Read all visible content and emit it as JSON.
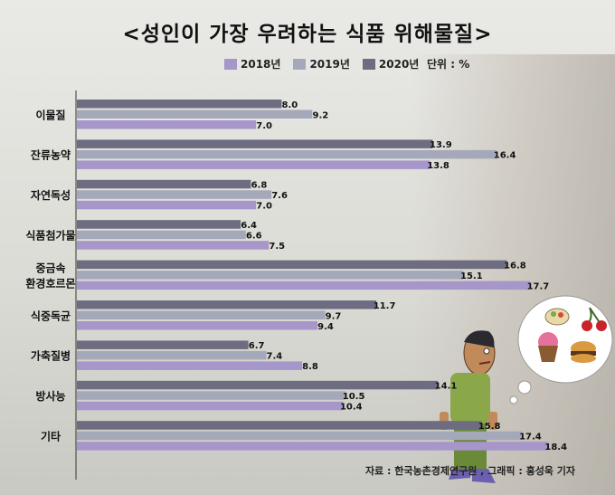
{
  "title": "<성인이 가장 우려하는 식품 위해물질>",
  "unit_label": "단위 : %",
  "source": "자료 : 한국농촌경제연구원 , 그래픽 : 홍성욱 기자",
  "chart_data": {
    "type": "bar",
    "orientation": "horizontal",
    "title": "<성인이 가장 우려하는 식품 위해물질>",
    "unit": "%",
    "legend_position": "top",
    "categories": [
      "이물질",
      "잔류농약",
      "자연독성",
      "식품첨가물",
      "중금속\n환경호르몬",
      "식중독균",
      "가축질병",
      "방사능",
      "기타"
    ],
    "category_lines": [
      [
        "이물질"
      ],
      [
        "잔류농약"
      ],
      [
        "자연독성"
      ],
      [
        "식품첨가물"
      ],
      [
        "중금속",
        "환경호르몬"
      ],
      [
        "식중독균"
      ],
      [
        "가축질병"
      ],
      [
        "방사능"
      ],
      [
        "기타"
      ]
    ],
    "series": [
      {
        "name": "2020년",
        "color": "#6d6c81",
        "values": [
          8.0,
          13.9,
          6.8,
          6.4,
          16.8,
          11.7,
          6.7,
          14.1,
          15.8
        ]
      },
      {
        "name": "2019년",
        "color": "#a5a8b9",
        "values": [
          9.2,
          16.4,
          7.6,
          6.6,
          15.1,
          9.7,
          7.4,
          10.5,
          17.4
        ]
      },
      {
        "name": "2018년",
        "color": "#a696c9",
        "values": [
          7.0,
          13.8,
          7.0,
          7.5,
          17.7,
          9.4,
          8.8,
          10.4,
          18.4
        ]
      }
    ],
    "legend_order": [
      "2018년",
      "2019년",
      "2020년"
    ],
    "xlim": [
      0,
      21
    ]
  }
}
